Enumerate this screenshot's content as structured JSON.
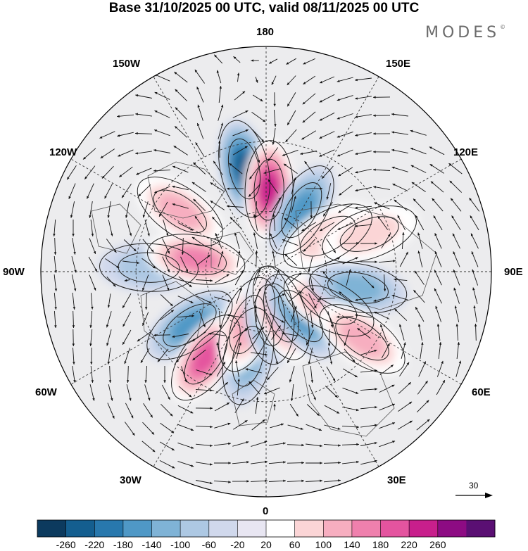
{
  "title": "Base 31/10/2025 00 UTC, valid 08/11/2025 00 UTC",
  "brand": "MODES",
  "brand_mark": "©",
  "longitude_labels": {
    "top": "180",
    "top_left": "150W",
    "top_right": "150E",
    "upper_left": "120W",
    "upper_right": "120E",
    "left": "90W",
    "right": "90E",
    "lower_left": "60W",
    "lower_right": "60E",
    "bottom_left": "30W",
    "bottom_right": "30E",
    "bottom": "0"
  },
  "reference_vector": {
    "value": "30"
  },
  "colorbar": {
    "ticks": [
      "-260",
      "-220",
      "-180",
      "-140",
      "-100",
      "-60",
      "-20",
      "20",
      "60",
      "100",
      "140",
      "180",
      "220",
      "260"
    ],
    "colors": [
      "#0c3a5e",
      "#145e8f",
      "#2878ad",
      "#4f98c6",
      "#7fb3d6",
      "#adc8e3",
      "#d0d8ec",
      "#e8e6f2",
      "#ffffff",
      "#fbd5d6",
      "#f7aec0",
      "#ef80ad",
      "#e4549f",
      "#c81f8c",
      "#8d0b83",
      "#5a0f73"
    ]
  },
  "map": {
    "projection": "north-polar-stereographic",
    "field": "geopotential height anomaly (m) with wind vectors",
    "centers": [
      {
        "sign": "neg",
        "value": -240,
        "lon": -168,
        "lat": 40
      },
      {
        "sign": "pos",
        "value": 230,
        "lon": 178,
        "lat": 50
      },
      {
        "sign": "neg",
        "value": -170,
        "lon": 150,
        "lat": 55
      },
      {
        "sign": "pos",
        "value": 130,
        "lon": -125,
        "lat": 40
      },
      {
        "sign": "neg",
        "value": -80,
        "lon": -92,
        "lat": 35
      },
      {
        "sign": "pos",
        "value": 150,
        "lon": -100,
        "lat": 55
      },
      {
        "sign": "neg",
        "value": -140,
        "lon": -55,
        "lat": 45
      },
      {
        "sign": "pos",
        "value": 200,
        "lon": -35,
        "lat": 40
      },
      {
        "sign": "neg",
        "value": -120,
        "lon": -12,
        "lat": 48
      },
      {
        "sign": "pos",
        "value": 100,
        "lon": -20,
        "lat": 62
      },
      {
        "sign": "neg",
        "value": -140,
        "lon": 5,
        "lat": 68
      },
      {
        "sign": "pos",
        "value": 150,
        "lon": 20,
        "lat": 68
      },
      {
        "sign": "neg",
        "value": -160,
        "lon": 38,
        "lat": 62
      },
      {
        "sign": "pos",
        "value": 100,
        "lon": 62,
        "lat": 55
      },
      {
        "sign": "neg",
        "value": -120,
        "lon": 80,
        "lat": 45
      },
      {
        "sign": "pos",
        "value": 130,
        "lon": 55,
        "lat": 35
      },
      {
        "sign": "pos",
        "value": 70,
        "lon": 120,
        "lat": 55
      },
      {
        "sign": "pos",
        "value": 60,
        "lon": 110,
        "lat": 38
      }
    ]
  }
}
